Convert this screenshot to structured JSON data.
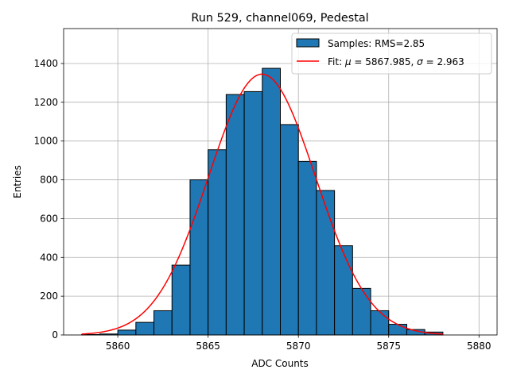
{
  "chart_data": {
    "type": "bar",
    "title": "Run 529, channel069, Pedestal",
    "xlabel": "ADC Counts",
    "ylabel": "Entries",
    "xlim": [
      5857,
      5881
    ],
    "ylim": [
      0,
      1580
    ],
    "xticks": [
      5860,
      5865,
      5870,
      5875,
      5880
    ],
    "yticks": [
      0,
      200,
      400,
      600,
      800,
      1000,
      1200,
      1400
    ],
    "grid": true,
    "legend_position": "top-right",
    "bins": [
      {
        "x0": 5858,
        "x1": 5859,
        "value": 2
      },
      {
        "x0": 5859,
        "x1": 5860,
        "value": 5
      },
      {
        "x0": 5860,
        "x1": 5861,
        "value": 25
      },
      {
        "x0": 5861,
        "x1": 5862,
        "value": 65
      },
      {
        "x0": 5862,
        "x1": 5863,
        "value": 125
      },
      {
        "x0": 5863,
        "x1": 5864,
        "value": 360
      },
      {
        "x0": 5864,
        "x1": 5865,
        "value": 800
      },
      {
        "x0": 5865,
        "x1": 5866,
        "value": 955
      },
      {
        "x0": 5866,
        "x1": 5867,
        "value": 1240
      },
      {
        "x0": 5867,
        "x1": 5868,
        "value": 1255
      },
      {
        "x0": 5868,
        "x1": 5869,
        "value": 1375
      },
      {
        "x0": 5869,
        "x1": 5870,
        "value": 1085
      },
      {
        "x0": 5870,
        "x1": 5871,
        "value": 895
      },
      {
        "x0": 5871,
        "x1": 5872,
        "value": 745
      },
      {
        "x0": 5872,
        "x1": 5873,
        "value": 460
      },
      {
        "x0": 5873,
        "x1": 5874,
        "value": 240
      },
      {
        "x0": 5874,
        "x1": 5875,
        "value": 125
      },
      {
        "x0": 5875,
        "x1": 5876,
        "value": 55
      },
      {
        "x0": 5876,
        "x1": 5877,
        "value": 28
      },
      {
        "x0": 5877,
        "x1": 5878,
        "value": 15
      }
    ],
    "fit": {
      "mu": 5867.985,
      "sigma": 2.963,
      "amplitude": 1345,
      "x_range": [
        5858,
        5878
      ]
    },
    "legend": {
      "samples_label": "Samples: RMS=2.85",
      "fit_prefix": "Fit: ",
      "fit_mu_symbol": "μ",
      "fit_mu_text": " = 5867.985, ",
      "fit_sigma_symbol": "σ",
      "fit_sigma_text": " = 2.963"
    },
    "colors": {
      "bar": "#1f77b4",
      "bar_edge": "#000000",
      "fit": "#ff0000",
      "grid": "#b0b0b0"
    }
  }
}
